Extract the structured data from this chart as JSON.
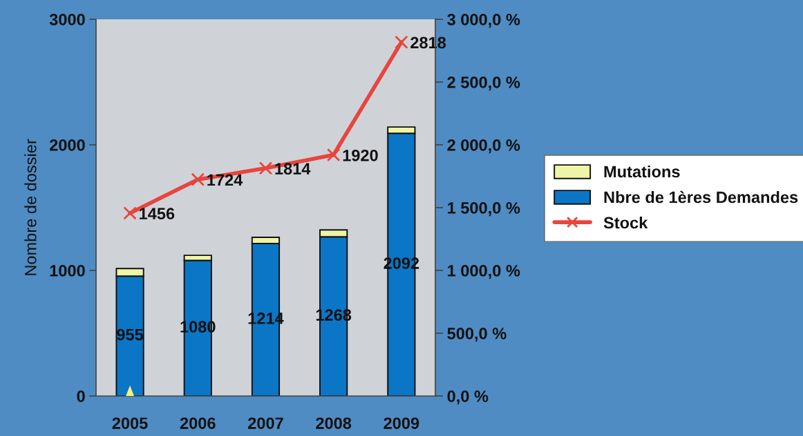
{
  "chart_data": {
    "type": "bar",
    "stacked": true,
    "ylabel": "Nombre de dossier",
    "categories": [
      "2005",
      "2006",
      "2007",
      "2008",
      "2009"
    ],
    "series": [
      {
        "name": "Nbre de 1ères Demandes",
        "color": "#0b76c6",
        "values": [
          955,
          1080,
          1214,
          1268,
          2092
        ],
        "value_labels": [
          "955",
          "1080",
          "1214",
          "1268",
          "2092"
        ]
      },
      {
        "name": "Mutations",
        "color": "#eef5a6",
        "values": [
          60,
          40,
          50,
          55,
          50
        ]
      },
      {
        "name": "Stock",
        "type": "line",
        "color": "#e8453c",
        "values": [
          1456,
          1724,
          1814,
          1920,
          2818
        ],
        "value_labels": [
          "1456",
          "1724",
          "1814",
          "1920",
          "2818"
        ]
      }
    ],
    "marker": "cross",
    "line_style": "solid",
    "ylim": [
      0,
      3000
    ],
    "yticks": [
      0,
      1000,
      2000,
      3000
    ],
    "y2lim": [
      0,
      3000
    ],
    "y2ticks": [
      {
        "value": 0,
        "label": "0,0 %"
      },
      {
        "value": 500,
        "label": "500,0 %"
      },
      {
        "value": 1000,
        "label": "1 000,0 %"
      },
      {
        "value": 1500,
        "label": "1 500,0 %"
      },
      {
        "value": 2000,
        "label": "2 000,0 %"
      },
      {
        "value": 2500,
        "label": "2 500,0 %"
      },
      {
        "value": 3000,
        "label": "3 000,0 %"
      }
    ],
    "legend": "right",
    "grid": false
  }
}
